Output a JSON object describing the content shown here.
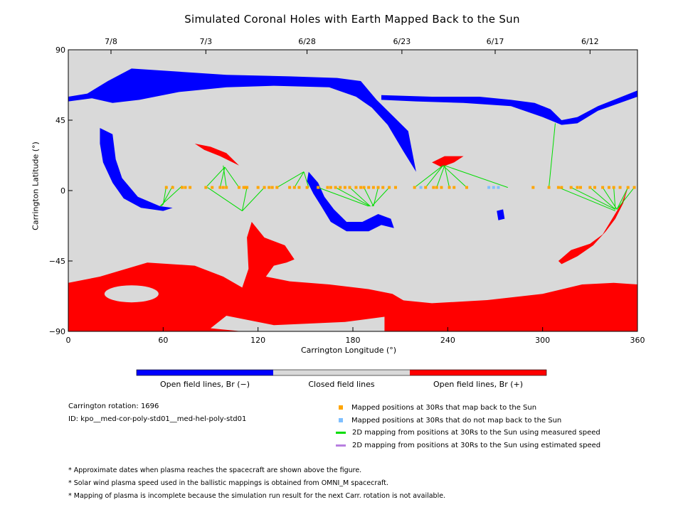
{
  "chart_data": {
    "type": "map",
    "title": "Simulated Coronal Holes with Earth Mapped Back to the Sun",
    "xlabel": "Carrington Longitude (°)",
    "ylabel": "Carrington Latitude (°)",
    "xlim": [
      0,
      360
    ],
    "ylim": [
      -90,
      90
    ],
    "xticks": [
      "0",
      "60",
      "120",
      "180",
      "240",
      "300",
      "360"
    ],
    "yticks": [
      "90",
      "45",
      "0",
      "−45",
      "−90"
    ],
    "top_dates": [
      {
        "lon": 27,
        "label": "7/8"
      },
      {
        "lon": 87,
        "label": "7/3"
      },
      {
        "lon": 151,
        "label": "6/28"
      },
      {
        "lon": 211,
        "label": "6/23"
      },
      {
        "lon": 270,
        "label": "6/17"
      },
      {
        "lon": 330,
        "label": "6/12"
      }
    ],
    "colors": {
      "negative": "#0000ff",
      "positive": "#ff0000",
      "closed": "#d9d9d9",
      "mapped": "#ffa500",
      "unmapped": "#7fbfff",
      "measured": "#00dd00",
      "estimated": "#b87fe0"
    },
    "mapped_positions": {
      "lat": 2,
      "lons": [
        62,
        66,
        72,
        74,
        77,
        87,
        91,
        96,
        98,
        100,
        108,
        111,
        112,
        113,
        120,
        124,
        127,
        129,
        132,
        140,
        143,
        146,
        151,
        158,
        164,
        166,
        169,
        172,
        175,
        178,
        182,
        185,
        187,
        190,
        193,
        196,
        199,
        203,
        207,
        219,
        226,
        231,
        233,
        236,
        241,
        244,
        252,
        294,
        304,
        310,
        312,
        318,
        322,
        324,
        330,
        333,
        338,
        342,
        345,
        349,
        354,
        358
      ]
    },
    "unmapped_positions": {
      "lat": 2,
      "lons": [
        223,
        266,
        269,
        272
      ]
    },
    "mapping_lines": [
      {
        "from": [
          62,
          3
        ],
        "to": [
          60,
          -9
        ]
      },
      {
        "from": [
          66,
          3
        ],
        "to": [
          59,
          -10
        ]
      },
      {
        "from": [
          72,
          3
        ],
        "to": [
          58,
          -10
        ]
      },
      {
        "from": [
          87,
          2
        ],
        "to": [
          99,
          15
        ]
      },
      {
        "from": [
          96,
          2
        ],
        "to": [
          99,
          15
        ]
      },
      {
        "from": [
          100,
          2
        ],
        "to": [
          98,
          16
        ]
      },
      {
        "from": [
          108,
          2
        ],
        "to": [
          99,
          15
        ]
      },
      {
        "from": [
          113,
          2
        ],
        "to": [
          110,
          -13
        ]
      },
      {
        "from": [
          88,
          2
        ],
        "to": [
          110,
          -13
        ]
      },
      {
        "from": [
          124,
          2
        ],
        "to": [
          110,
          -13
        ]
      },
      {
        "from": [
          132,
          2
        ],
        "to": [
          149,
          12
        ]
      },
      {
        "from": [
          143,
          2
        ],
        "to": [
          149,
          12
        ]
      },
      {
        "from": [
          152,
          2
        ],
        "to": [
          149,
          12
        ]
      },
      {
        "from": [
          158,
          2
        ],
        "to": [
          190,
          -10
        ]
      },
      {
        "from": [
          169,
          2
        ],
        "to": [
          191,
          -10
        ]
      },
      {
        "from": [
          178,
          2
        ],
        "to": [
          191,
          -10
        ]
      },
      {
        "from": [
          187,
          2
        ],
        "to": [
          193,
          -10
        ]
      },
      {
        "from": [
          196,
          2
        ],
        "to": [
          193,
          -10
        ]
      },
      {
        "from": [
          203,
          2
        ],
        "to": [
          192,
          -10
        ]
      },
      {
        "from": [
          219,
          2
        ],
        "to": [
          237,
          16
        ]
      },
      {
        "from": [
          226,
          2
        ],
        "to": [
          237,
          16
        ]
      },
      {
        "from": [
          233,
          2
        ],
        "to": [
          238,
          16
        ]
      },
      {
        "from": [
          241,
          2
        ],
        "to": [
          238,
          16
        ]
      },
      {
        "from": [
          252,
          2
        ],
        "to": [
          237,
          16
        ]
      },
      {
        "from": [
          278,
          2
        ],
        "to": [
          238,
          16
        ]
      },
      {
        "from": [
          304,
          2
        ],
        "to": [
          308,
          43
        ]
      },
      {
        "from": [
          310,
          2
        ],
        "to": [
          346,
          -13
        ]
      },
      {
        "from": [
          318,
          2
        ],
        "to": [
          346,
          -12
        ]
      },
      {
        "from": [
          330,
          2
        ],
        "to": [
          346,
          -12
        ]
      },
      {
        "from": [
          338,
          2
        ],
        "to": [
          347,
          -12
        ]
      },
      {
        "from": [
          345,
          2
        ],
        "to": [
          346,
          -12
        ]
      },
      {
        "from": [
          354,
          2
        ],
        "to": [
          347,
          -12
        ]
      },
      {
        "from": [
          358,
          2
        ],
        "to": [
          347,
          -12
        ]
      }
    ]
  },
  "colorbar": {
    "negative_label": "Open field lines, Br (−)",
    "closed_label": "Closed field lines",
    "positive_label": "Open field lines, Br (+)"
  },
  "info": {
    "rotation": "Carrington rotation: 1696",
    "id": "ID: kpo__med-cor-poly-std01__med-hel-poly-std01"
  },
  "legend": {
    "mapped": "Mapped positions at 30Rs that map back to the Sun",
    "unmapped": "Mapped positions at 30Rs that do not map back to the Sun",
    "measured": "2D mapping from positions at 30Rs to the Sun using measured speed",
    "estimated": "2D mapping from positions at 30Rs to the Sun using estimated speed"
  },
  "notes": [
    "* Approximate dates when plasma reaches the spacecraft are shown above the figure.",
    "* Solar wind plasma speed used in the ballistic mappings is obtained from OMNI_M spacecraft.",
    "* Mapping of plasma is incomplete because the simulation run result for the next Carr. rotation is not available."
  ]
}
